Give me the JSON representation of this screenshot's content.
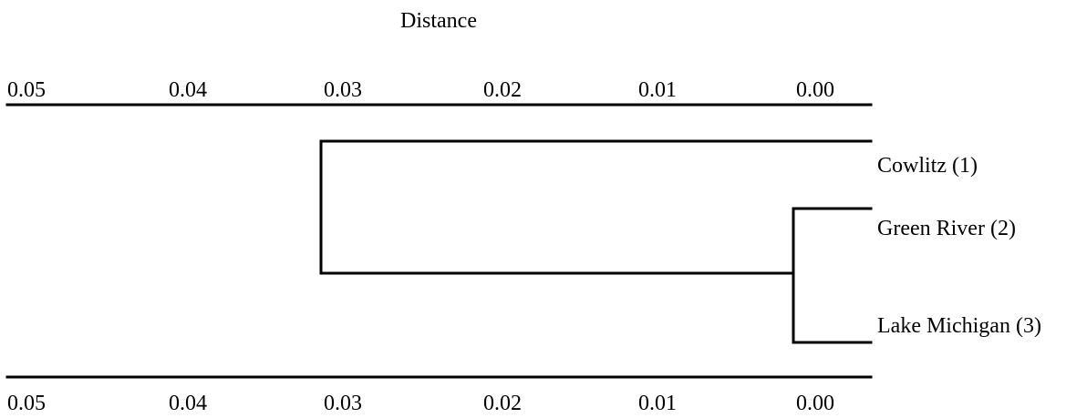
{
  "axis_title": "Distance",
  "axis_ticks": [
    "0.05",
    "0.04",
    "0.03",
    "0.02",
    "0.01",
    "0.00"
  ],
  "leaves": [
    {
      "id": "leaf-1",
      "label": "Cowlitz (1)"
    },
    {
      "id": "leaf-2",
      "label": "Green River (2)"
    },
    {
      "id": "leaf-3",
      "label": "Lake Michigan (3)"
    }
  ],
  "merges": [
    {
      "children": [
        "leaf-2",
        "leaf-3"
      ],
      "distance": 0.0005
    },
    {
      "children": [
        "leaf-1",
        "merge-1"
      ],
      "distance": 0.031
    }
  ],
  "distance_range": [
    0.05,
    0.0
  ],
  "line_color": "#000000"
}
